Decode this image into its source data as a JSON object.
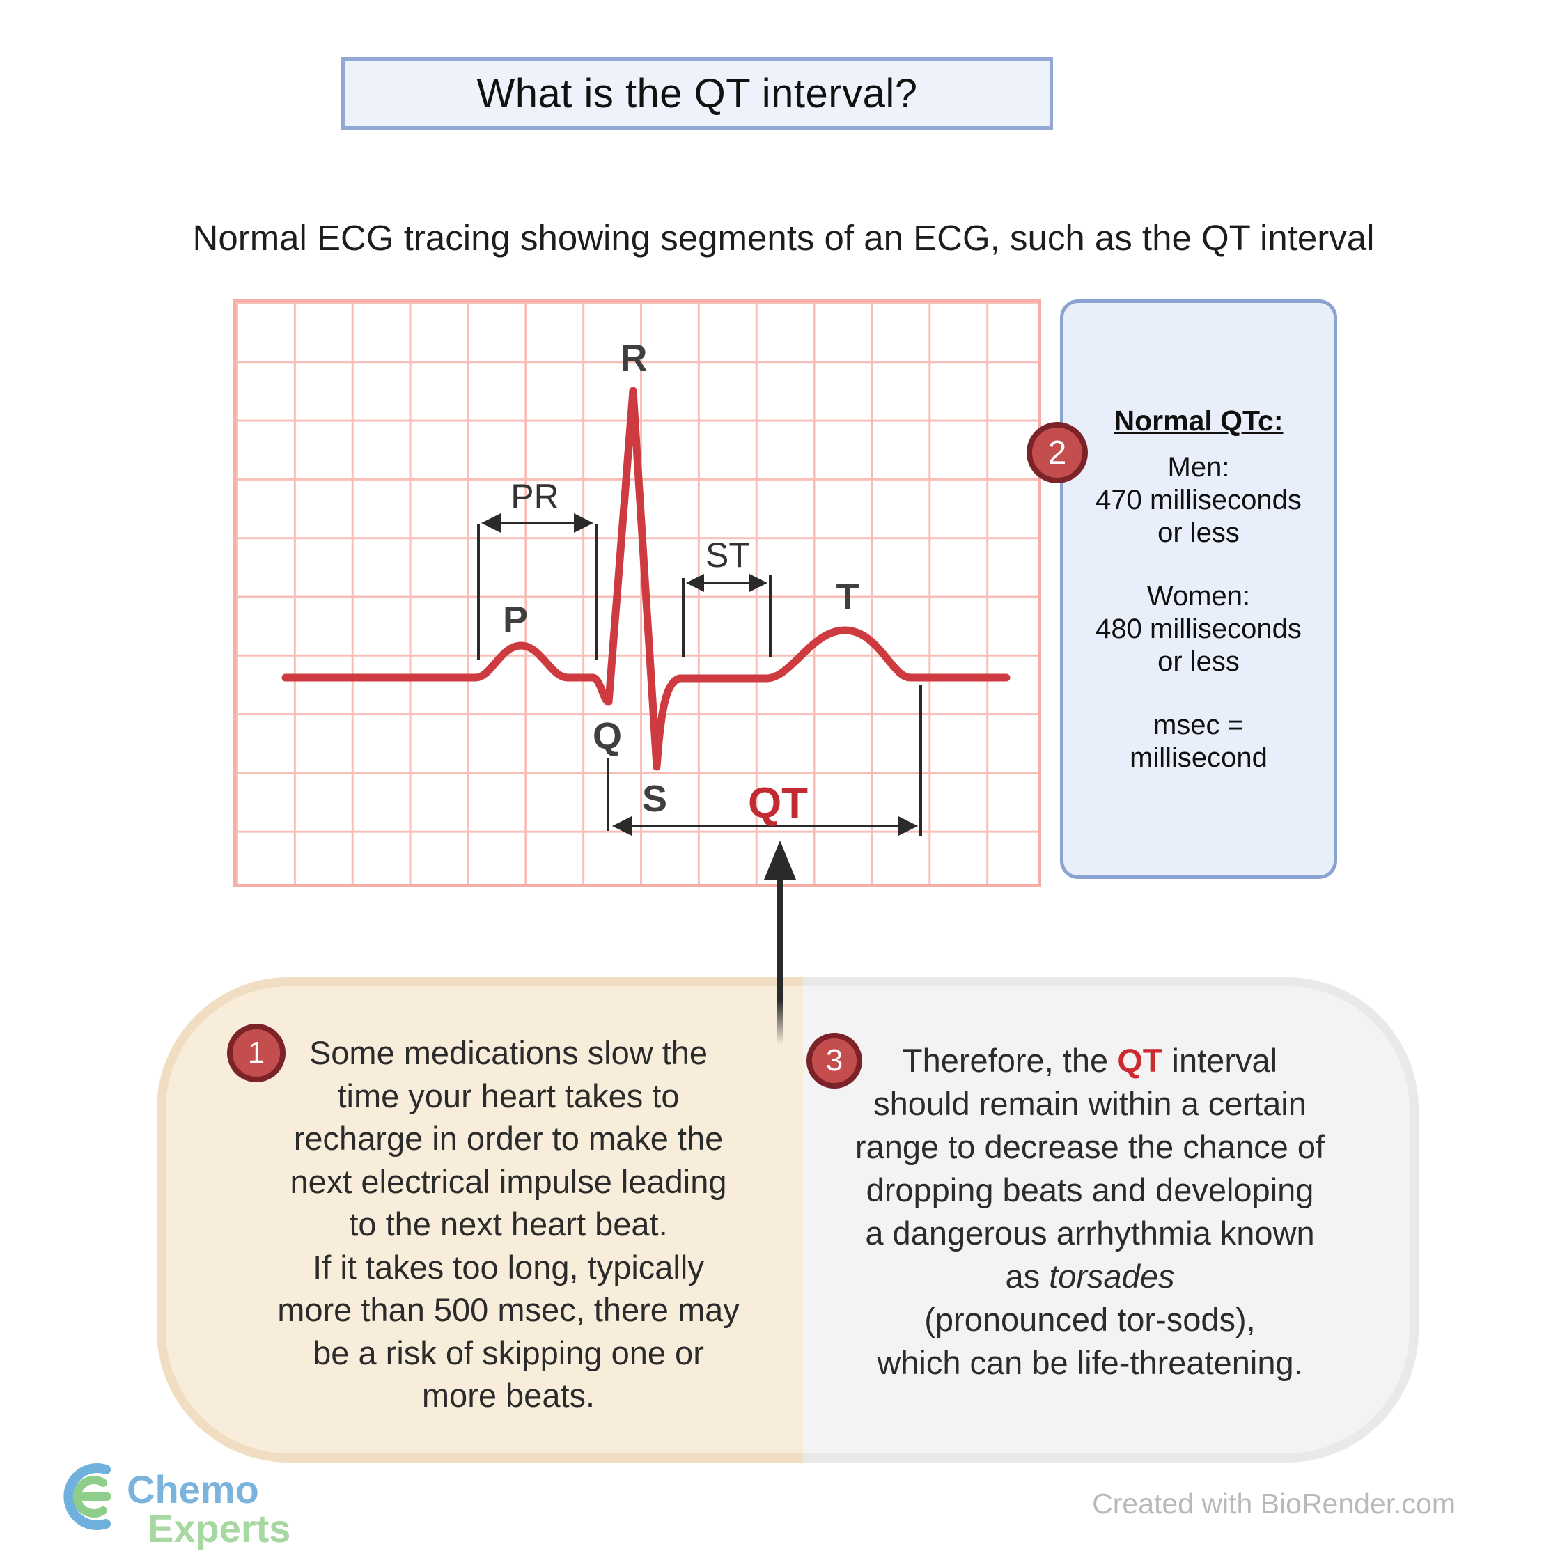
{
  "title": "What is the QT interval?",
  "subtitle": "Normal ECG tracing showing segments of an ECG, such as the QT interval",
  "ecg": {
    "labels": {
      "p": "P",
      "q": "Q",
      "r": "R",
      "s": "S",
      "t": "T",
      "pr": "PR",
      "st": "ST",
      "qt": "QT"
    }
  },
  "qtc_panel": {
    "badge": "2",
    "heading": "Normal QTc:",
    "groups": [
      [
        "Men:",
        "470 milliseconds",
        "or less"
      ],
      [
        "Women:",
        "480 milliseconds",
        "or less"
      ],
      [
        "msec =",
        "millisecond"
      ]
    ]
  },
  "callouts": [
    {
      "badge": "1",
      "lines": [
        [
          {
            "t": "Some medications slow the"
          }
        ],
        [
          {
            "t": "time your heart takes to"
          }
        ],
        [
          {
            "t": "recharge in order to make the"
          }
        ],
        [
          {
            "t": "next electrical impulse leading"
          }
        ],
        [
          {
            "t": "to the next heart beat."
          }
        ],
        [
          {
            "t": "If it takes too long, typically"
          }
        ],
        [
          {
            "t": "more than 500 msec, there may"
          }
        ],
        [
          {
            "t": "be a risk of skipping one or"
          }
        ],
        [
          {
            "t": "more beats."
          }
        ]
      ]
    },
    {
      "badge": "3",
      "lines": [
        [
          {
            "t": "Therefore, the "
          },
          {
            "t": "QT",
            "s": "qt"
          },
          {
            "t": " interval"
          }
        ],
        [
          {
            "t": "should remain within a certain"
          }
        ],
        [
          {
            "t": "range to decrease the chance of"
          }
        ],
        [
          {
            "t": "dropping beats and developing"
          }
        ],
        [
          {
            "t": "a dangerous arrhythmia known"
          }
        ],
        [
          {
            "t": "as "
          },
          {
            "t": "torsades",
            "s": "i"
          }
        ],
        [
          {
            "t": "(pronounced tor-sods),"
          }
        ],
        [
          {
            "t": "which can be life-threatening."
          }
        ]
      ]
    }
  ],
  "footer": {
    "brand_word_1": "Chemo",
    "brand_word_2": "Experts",
    "credit": "Created with BioRender.com"
  },
  "colors": {
    "ecg_trace_red": "#cd3b40",
    "grid_pink": "#f8bfb9",
    "qt_text_red": "#c12b31",
    "badge_fill": "#c44d4e",
    "badge_border": "#7c2329",
    "info_box_fill": "#e9effa",
    "info_box_border": "#8ba3d1",
    "title_box_fill": "#edf2fb",
    "title_box_border": "#94a8d6",
    "bubble_left_fill": "#f8ecda",
    "bubble_right_fill": "#f3f3f3",
    "logo_blue": "#7ab4dd",
    "logo_green": "#a8d8a1",
    "credit_gray": "#b9b9b9"
  }
}
